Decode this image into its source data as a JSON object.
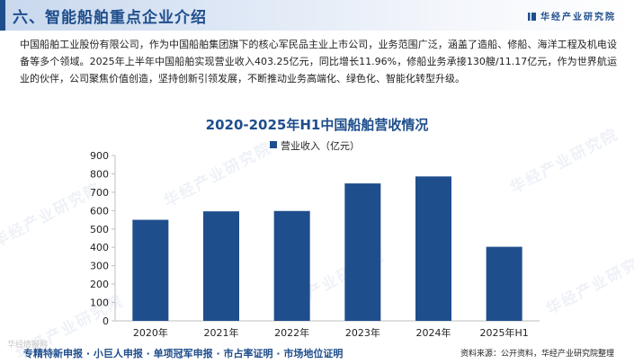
{
  "header": {
    "title": "六、智能船舶重点企业介绍",
    "brand": "华经产业研究院"
  },
  "intro_text": "中国船舶工业股份有限公司，作为中国船舶集团旗下的核心军民品主业上市公司，业务范围广泛，涵盖了造船、修船、海洋工程及机电设备等多个领域。2025年上半年中国船舶实现营业收入403.25亿元，同比增长11.96%，修船业务承接130艘/11.17亿元，作为世界航运业的伙伴，公司聚焦价值创造，坚持创新引领发展，不断推动业务高端化、绿色化、智能化转型升级。",
  "chart_data": {
    "type": "bar",
    "title": "2020-2025年H1中国船舶营收情况",
    "categories": [
      "2020年",
      "2021年",
      "2022年",
      "2023年",
      "2024年",
      "2025年H1"
    ],
    "series": [
      {
        "name": "营业收入（亿元）",
        "values": [
          550,
          596,
          598,
          748,
          786,
          403
        ]
      }
    ],
    "ylim": [
      0,
      900
    ],
    "yticks": [
      0,
      100,
      200,
      300,
      400,
      500,
      600,
      700,
      800,
      900
    ],
    "grid": false,
    "legend": "top-center",
    "bar_color": "#1f4e8c",
    "axis_color": "#bfbfbf"
  },
  "watermark": "华经产业研究院",
  "footer": {
    "logo": "华经情报网",
    "services": "专精特新申报 · 小巨人申报 · 单项冠军申报 · 市占率证明 · 市场地位证明",
    "source": "资料来源：公开资料，华经产业研究院整理"
  },
  "colors": {
    "primary": "#1f4e8c"
  }
}
